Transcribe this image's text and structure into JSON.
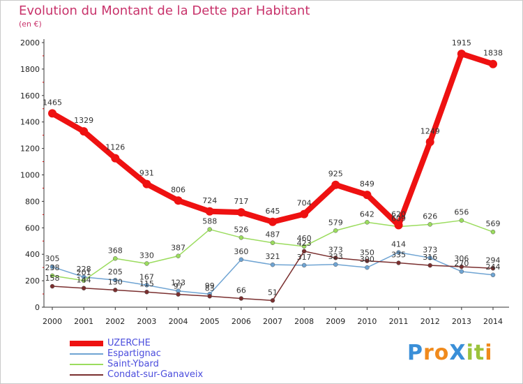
{
  "chart_data": {
    "type": "line",
    "title": "Evolution du Montant de la Dette par Habitant",
    "subtitle": "(en €)",
    "x": [
      "2000",
      "2001",
      "2002",
      "2003",
      "2004",
      "2005",
      "2006",
      "2007",
      "2008",
      "2009",
      "2010",
      "2011",
      "2012",
      "2013",
      "2014"
    ],
    "ylim": [
      0,
      2000
    ],
    "yticks": [
      "0",
      "200",
      "400",
      "600",
      "800",
      "1000",
      "1200",
      "1400",
      "1600",
      "1800",
      "2000"
    ],
    "grid": false,
    "legend_position": "bottom-left",
    "series": [
      {
        "name": "UZERCHE",
        "color": "#ee1111",
        "width": 8,
        "values": [
          1465,
          1329,
          1126,
          931,
          806,
          724,
          717,
          645,
          704,
          925,
          849,
          620,
          1249,
          1915,
          1838
        ],
        "labels": [
          "1465",
          "1329",
          "1126",
          "931",
          "806",
          "724",
          "717",
          "645",
          "704",
          "925",
          "849",
          "620",
          "1249",
          "1915",
          "1838"
        ]
      },
      {
        "name": "Espartignac",
        "color": "#6fa4d3",
        "width": 1.5,
        "values": [
          305,
          228,
          205,
          167,
          123,
          99,
          360,
          321,
          317,
          323,
          300,
          414,
          373,
          270,
          244
        ],
        "labels": [
          "305",
          "228",
          "205",
          "167",
          "123",
          "99",
          "360",
          "321",
          "317",
          "323",
          "300",
          "414",
          "373",
          "270",
          "244"
        ]
      },
      {
        "name": "Saint-Ybard",
        "color": "#9bdc5e",
        "width": 1.5,
        "values": [
          238,
          201,
          368,
          330,
          387,
          588,
          526,
          487,
          460,
          579,
          642,
          609,
          626,
          656,
          569
        ],
        "labels": [
          "238",
          "201",
          "368",
          "330",
          "387",
          "588",
          "526",
          "487",
          "460",
          "579",
          "642",
          "609",
          "626",
          "656",
          "569"
        ]
      },
      {
        "name": "Condat-sur-Ganaveix",
        "color": "#7a2f2f",
        "width": 1.5,
        "values": [
          158,
          144,
          130,
          115,
          97,
          83,
          66,
          51,
          423,
          373,
          350,
          335,
          316,
          306,
          294
        ],
        "labels": [
          "158",
          "144",
          "130",
          "115",
          "97",
          "83",
          "66",
          "51",
          "423",
          "373",
          "350",
          "335",
          "316",
          "306",
          "294"
        ]
      }
    ]
  },
  "logo": {
    "text": "ProXiti",
    "letters": [
      "P",
      "r",
      "o",
      "X",
      "i",
      "t",
      "i"
    ],
    "colors": [
      "#3a8fd8",
      "#f08a1c",
      "#f08a1c",
      "#3a8fd8",
      "#9bc33c",
      "#9bc33c",
      "#f08a1c"
    ]
  }
}
